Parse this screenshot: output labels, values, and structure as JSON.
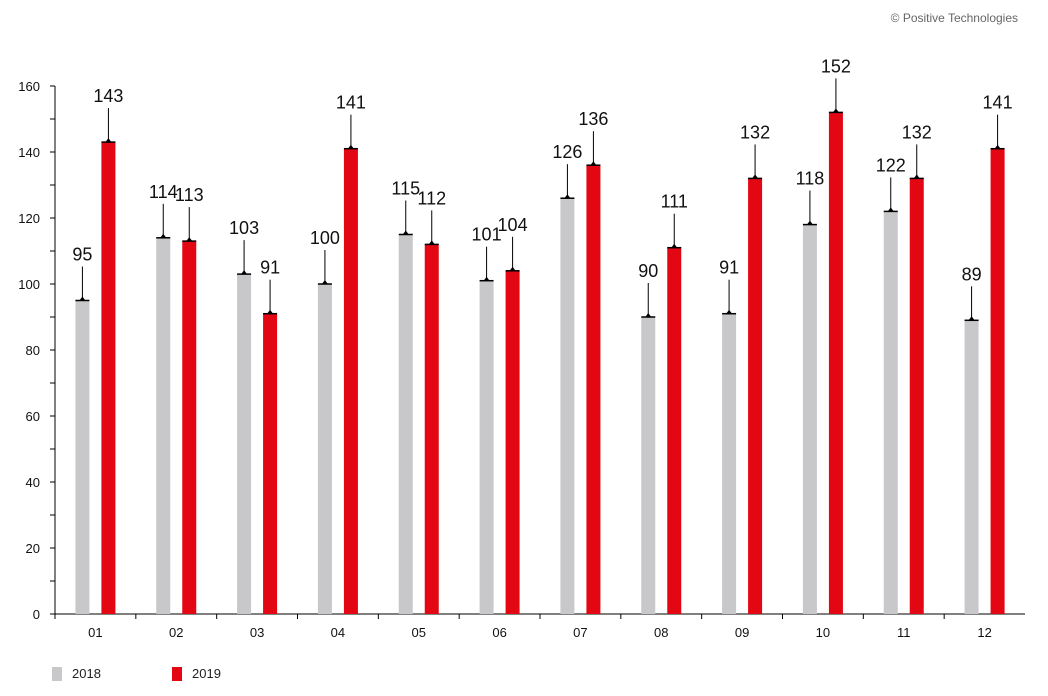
{
  "copyright": "© Positive Technologies",
  "colors": {
    "s2018": "#c8c7c9",
    "s2019": "#e30613",
    "axis": "#000000"
  },
  "chart_data": {
    "type": "bar",
    "title": "",
    "xlabel": "",
    "ylabel": "",
    "ylim": [
      0,
      160
    ],
    "yticks": [
      0,
      20,
      40,
      60,
      80,
      100,
      120,
      140,
      160
    ],
    "categories": [
      "01",
      "02",
      "03",
      "04",
      "05",
      "06",
      "07",
      "08",
      "09",
      "10",
      "11",
      "12"
    ],
    "series": [
      {
        "name": "2018",
        "values": [
          95,
          114,
          103,
          100,
          115,
          101,
          126,
          90,
          91,
          118,
          122,
          89
        ]
      },
      {
        "name": "2019",
        "values": [
          143,
          113,
          91,
          141,
          112,
          104,
          136,
          111,
          132,
          152,
          132,
          141
        ]
      }
    ],
    "legend": "bottom-left",
    "grid": false
  }
}
